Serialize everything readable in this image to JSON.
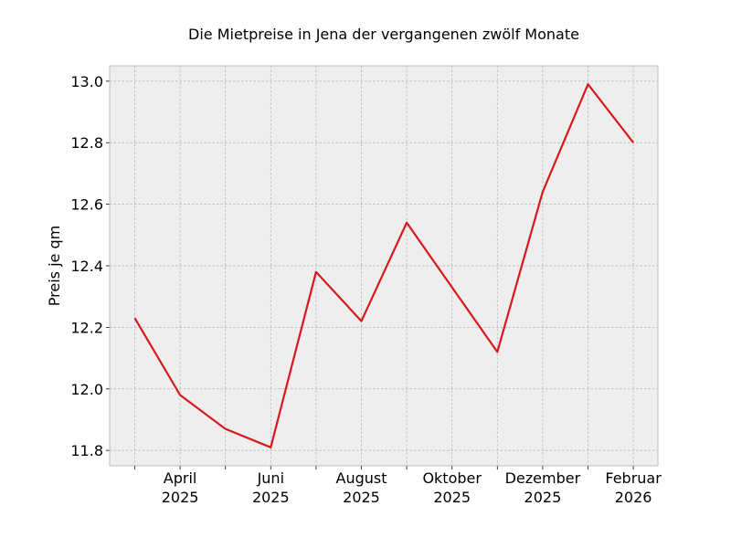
{
  "chart_data": {
    "type": "line",
    "title": "Die Mietpreise in Jena der vergangenen zwölf Monate",
    "xlabel": "",
    "ylabel": "Preis je qm",
    "x": [
      "2025-03",
      "2025-04",
      "2025-05",
      "2025-06",
      "2025-07",
      "2025-08",
      "2025-09",
      "2025-10",
      "2025-11",
      "2025-12",
      "2026-01",
      "2026-02"
    ],
    "series": [
      {
        "values": [
          12.23,
          11.98,
          11.87,
          11.81,
          12.38,
          12.22,
          12.54,
          12.33,
          12.12,
          12.64,
          12.99,
          12.8
        ],
        "color": "#d7191c"
      }
    ],
    "ylim": [
      11.75,
      13.05
    ],
    "y_ticks": [
      "11.8",
      "12.0",
      "12.2",
      "12.4",
      "12.6",
      "12.8",
      "13.0"
    ],
    "x_tick_labels": [
      {
        "month": "April",
        "year": "2025"
      },
      {
        "month": "Juni",
        "year": "2025"
      },
      {
        "month": "August",
        "year": "2025"
      },
      {
        "month": "Oktober",
        "year": "2025"
      },
      {
        "month": "Dezember",
        "year": "2025"
      },
      {
        "month": "Februar",
        "year": "2026"
      }
    ],
    "grid": true,
    "background": "#eeeeee",
    "grid_color": "#b0b0b0"
  }
}
